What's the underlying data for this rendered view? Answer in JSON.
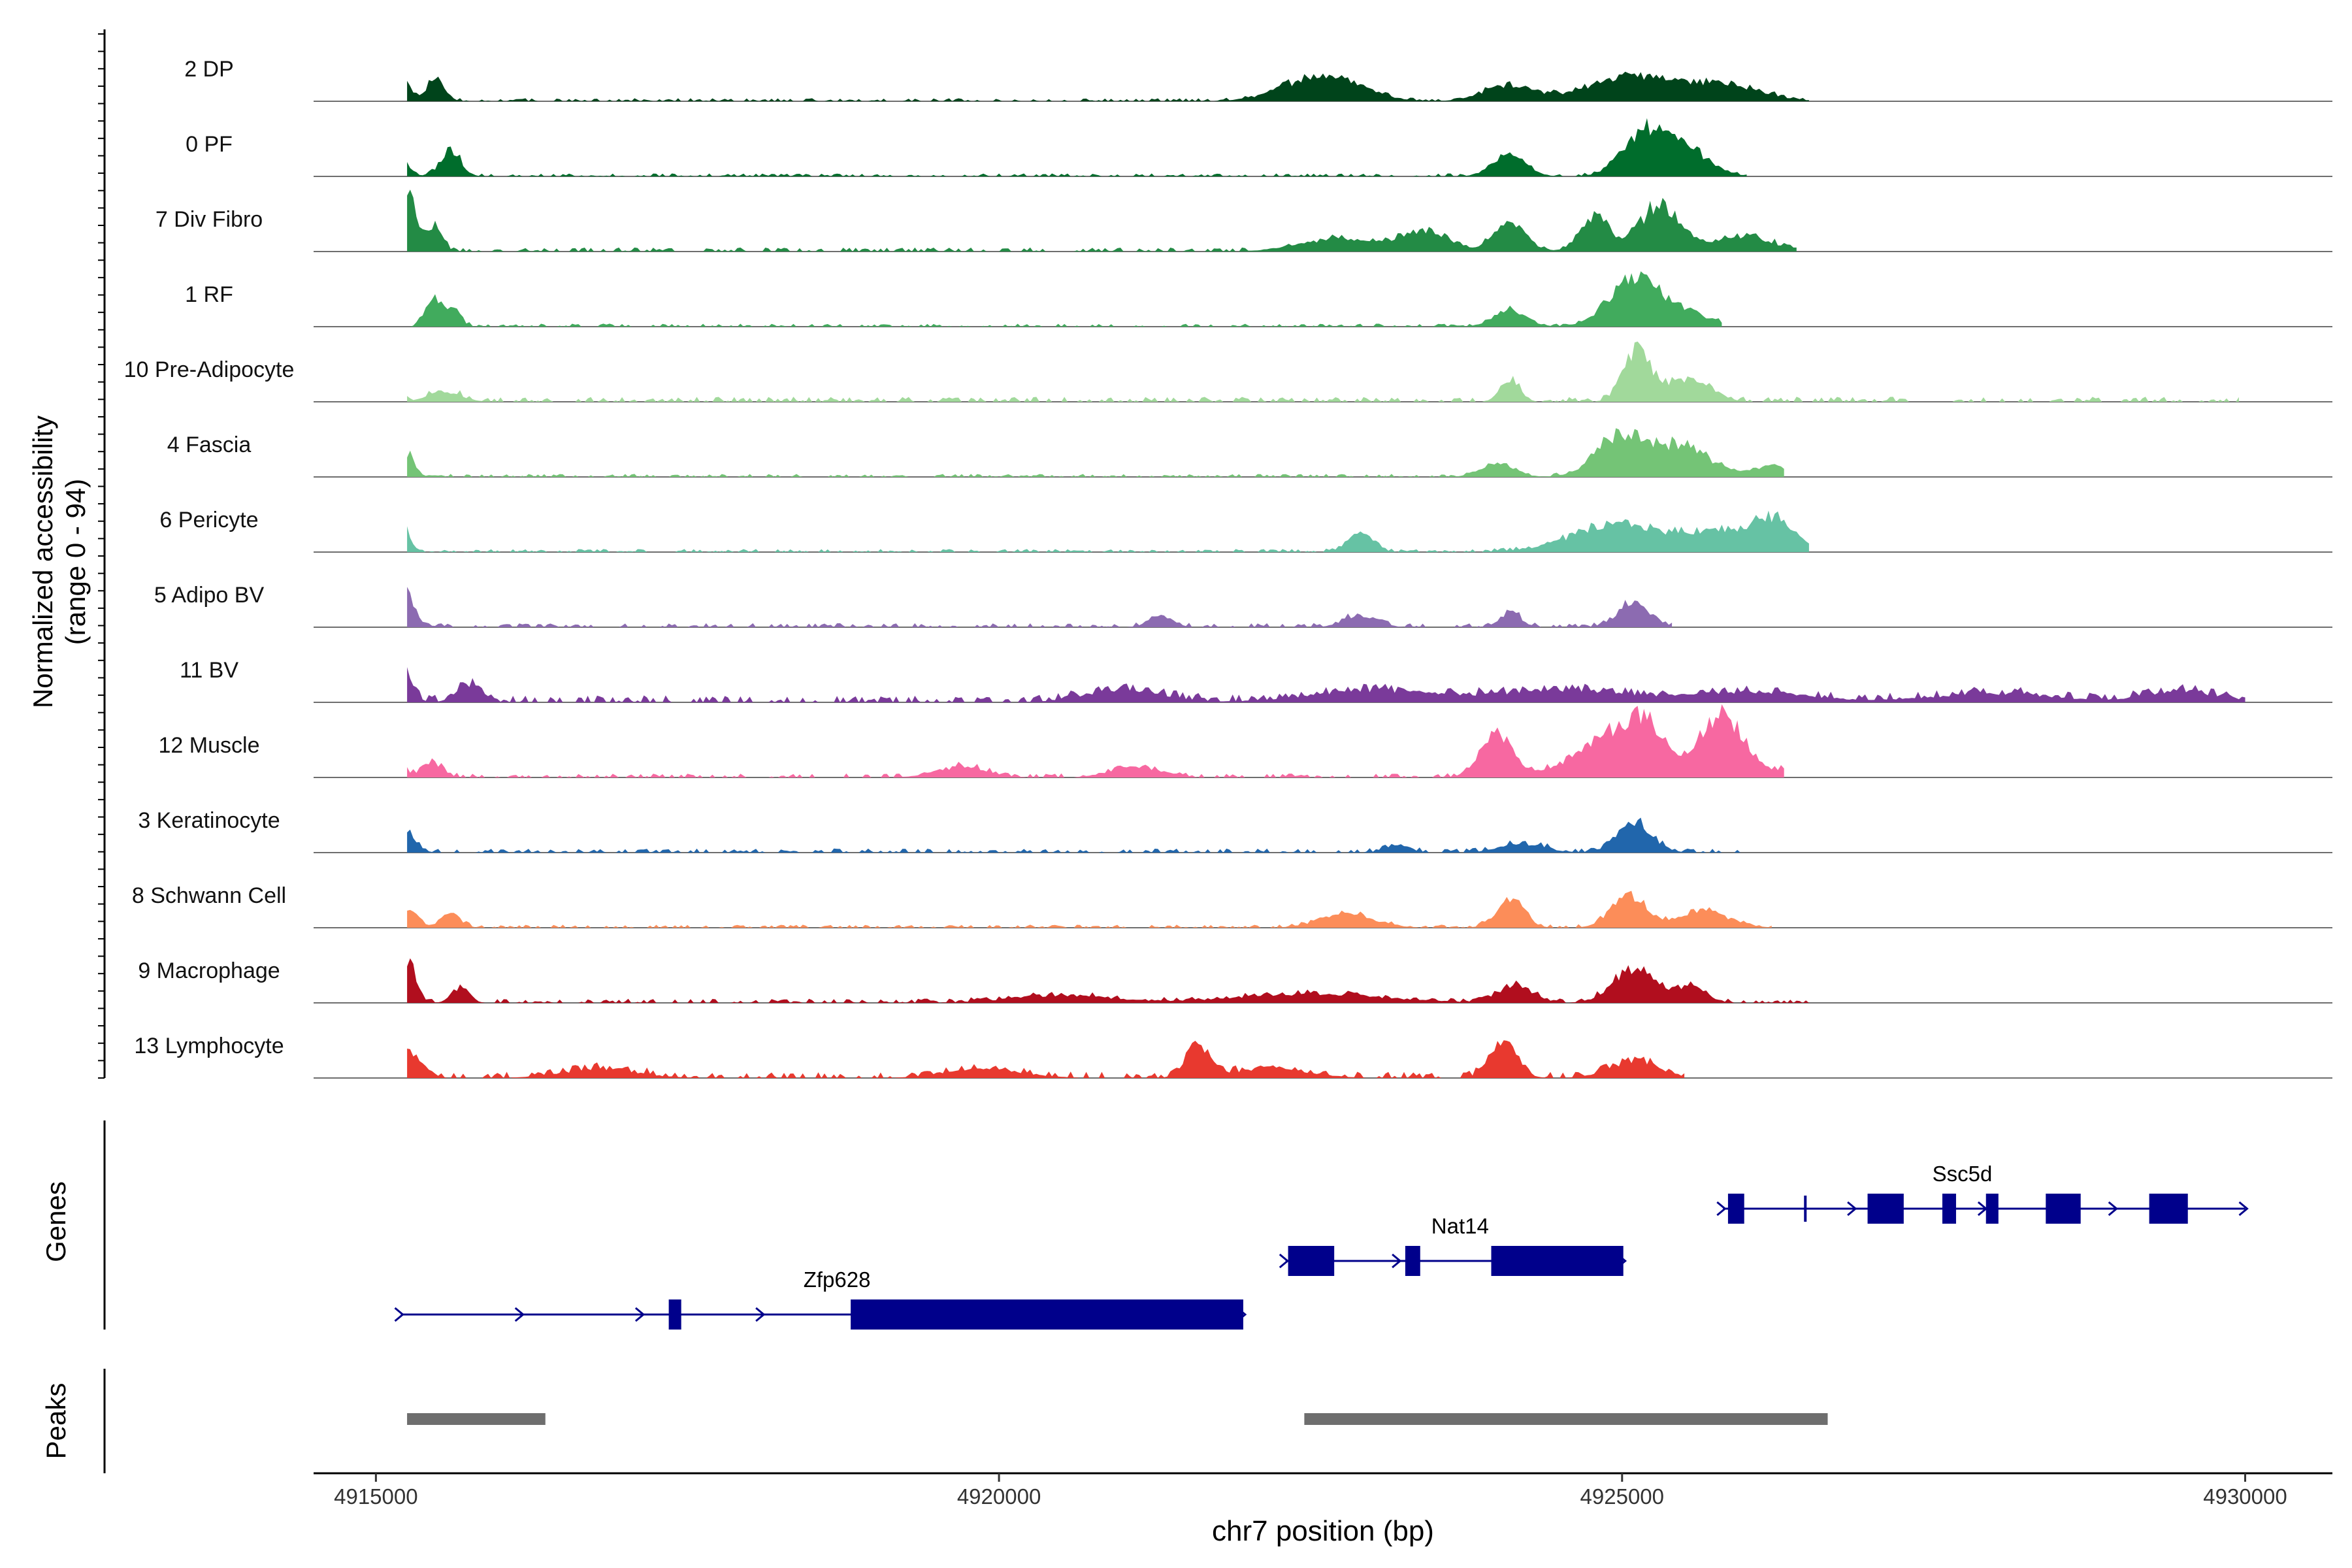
{
  "chart_data": {
    "type": "area",
    "title": "",
    "ylabel_line1": "Normalized accessibility",
    "ylabel_line2": "(range 0 - 94)",
    "xlabel": "chr7 position (bp)",
    "xlim": [
      4914500,
      4930700
    ],
    "y_range": [
      0,
      94
    ],
    "x_ticks": [
      4915000,
      4920000,
      4925000,
      4930000
    ],
    "x_tick_labels": [
      "4915000",
      "4920000",
      "4925000",
      "4930000"
    ],
    "track_y_max": 94,
    "tracks": [
      {
        "name": "2 DP",
        "color": "#00441b",
        "peaks": [
          [
            4915180,
            40,
            70
          ],
          [
            4915480,
            30,
            70
          ],
          [
            4922600,
            35,
            300
          ],
          [
            4924100,
            22,
            200
          ],
          [
            4925070,
            34,
            320
          ],
          [
            4925800,
            22,
            300
          ]
        ],
        "region": [
          4915250,
          4926500
        ],
        "base": 3
      },
      {
        "name": "0 PF",
        "color": "#006d2c",
        "peaks": [
          [
            4915150,
            38,
            80
          ],
          [
            4915600,
            36,
            80
          ],
          [
            4925200,
            62,
            180
          ],
          [
            4924100,
            28,
            130
          ],
          [
            4925550,
            28,
            180
          ]
        ],
        "region": [
          4915250,
          4926000
        ],
        "base": 3
      },
      {
        "name": "7 Div Fibro",
        "color": "#238b45",
        "peaks": [
          [
            4915250,
            78,
            80
          ],
          [
            4915480,
            30,
            60
          ],
          [
            4923400,
            26,
            200
          ],
          [
            4922700,
            16,
            300
          ],
          [
            4924100,
            36,
            130
          ],
          [
            4924780,
            46,
            120
          ],
          [
            4925300,
            60,
            160
          ],
          [
            4925950,
            20,
            250
          ]
        ],
        "region": [
          4915250,
          4926400
        ],
        "base": 4
      },
      {
        "name": "1 RF",
        "color": "#41ab5d",
        "peaks": [
          [
            4915450,
            34,
            60
          ],
          [
            4915600,
            26,
            70
          ],
          [
            4924100,
            22,
            130
          ],
          [
            4925100,
            62,
            200
          ],
          [
            4925500,
            18,
            200
          ]
        ],
        "region": [
          4915250,
          4925800
        ],
        "base": 3
      },
      {
        "name": "10 Pre-Adipocyte",
        "color": "#a1d99b",
        "peaks": [
          [
            4915150,
            48,
            50
          ],
          [
            4915550,
            14,
            130
          ],
          [
            4924100,
            26,
            80
          ],
          [
            4925120,
            70,
            110
          ],
          [
            4925550,
            32,
            160
          ]
        ],
        "region": [
          4915250,
          4929950
        ],
        "base": 5
      },
      {
        "name": "4 Fascia",
        "color": "#74c476",
        "peaks": [
          [
            4915250,
            30,
            60
          ],
          [
            4924000,
            20,
            130
          ],
          [
            4925000,
            58,
            200
          ],
          [
            4925500,
            40,
            200
          ],
          [
            4926200,
            14,
            200
          ]
        ],
        "region": [
          4915250,
          4926300
        ],
        "base": 3
      },
      {
        "name": "6 Pericyte",
        "color": "#66c2a4",
        "peaks": [
          [
            4915200,
            48,
            60
          ],
          [
            4922900,
            26,
            100
          ],
          [
            4925000,
            38,
            380
          ],
          [
            4925750,
            24,
            200
          ],
          [
            4926200,
            46,
            180
          ]
        ],
        "region": [
          4915250,
          4926500
        ],
        "base": 3
      },
      {
        "name": "5 Adipo BV",
        "color": "#8c6bb1",
        "peaks": [
          [
            4915250,
            42,
            70
          ],
          [
            4921300,
            14,
            100
          ],
          [
            4922900,
            16,
            130
          ],
          [
            4924100,
            20,
            80
          ],
          [
            4925100,
            32,
            130
          ]
        ],
        "region": [
          4915250,
          4925400
        ],
        "base": 4
      },
      {
        "name": "11 BV",
        "color": "#7a3a9a",
        "peaks": [
          [
            4915230,
            36,
            70
          ],
          [
            4915750,
            24,
            100
          ],
          [
            4921000,
            18,
            300
          ],
          [
            4923000,
            16,
            500
          ],
          [
            4924500,
            16,
            500
          ],
          [
            4926000,
            14,
            500
          ],
          [
            4928000,
            12,
            500
          ],
          [
            4929500,
            14,
            300
          ]
        ],
        "region": [
          4915250,
          4930000
        ],
        "base": 7
      },
      {
        "name": "12 Muscle",
        "color": "#f768a1",
        "peaks": [
          [
            4915150,
            48,
            60
          ],
          [
            4915450,
            20,
            80
          ],
          [
            4919700,
            14,
            200
          ],
          [
            4921100,
            14,
            200
          ],
          [
            4924000,
            60,
            130
          ],
          [
            4924750,
            34,
            230
          ],
          [
            4925150,
            74,
            200
          ],
          [
            4925800,
            88,
            160
          ],
          [
            4926300,
            10,
            200
          ]
        ],
        "region": [
          4915250,
          4926300
        ],
        "base": 4
      },
      {
        "name": "3 Keratinocyte",
        "color": "#2166ac",
        "peaks": [
          [
            4915200,
            36,
            90
          ],
          [
            4924200,
            12,
            180
          ],
          [
            4925100,
            40,
            140
          ],
          [
            4923200,
            10,
            100
          ]
        ],
        "region": [
          4915250,
          4926000
        ],
        "base": 4
      },
      {
        "name": "8 Schwann Cell",
        "color": "#fc8d59",
        "peaks": [
          [
            4915250,
            26,
            80
          ],
          [
            4915600,
            18,
            80
          ],
          [
            4922800,
            18,
            220
          ],
          [
            4924100,
            38,
            110
          ],
          [
            4925050,
            42,
            140
          ],
          [
            4925650,
            22,
            200
          ]
        ],
        "region": [
          4915250,
          4926200
        ],
        "base": 3
      },
      {
        "name": "9 Macrophage",
        "color": "#b10e1e",
        "peaks": [
          [
            4915250,
            54,
            70
          ],
          [
            4915680,
            20,
            70
          ],
          [
            4924150,
            24,
            130
          ],
          [
            4925100,
            46,
            170
          ],
          [
            4925550,
            22,
            120
          ],
          [
            4922500,
            12,
            600
          ],
          [
            4920500,
            10,
            400
          ]
        ],
        "region": [
          4915250,
          4926500
        ],
        "base": 4
      },
      {
        "name": "13 Lymphocyte",
        "color": "#e8392f",
        "peaks": [
          [
            4915150,
            56,
            60
          ],
          [
            4915300,
            26,
            100
          ],
          [
            4916800,
            12,
            300
          ],
          [
            4919900,
            12,
            300
          ],
          [
            4921600,
            44,
            100
          ],
          [
            4922200,
            12,
            300
          ],
          [
            4924050,
            46,
            110
          ],
          [
            4925100,
            22,
            200
          ]
        ],
        "region": [
          4915250,
          4925500
        ],
        "base": 6
      }
    ],
    "genes_title": "Genes",
    "genes": [
      {
        "name": "Zfp628",
        "start": 4915200,
        "end": 4921960,
        "strand": "+",
        "exons": [
          [
            4917350,
            4917450
          ],
          [
            4918810,
            4921960
          ]
        ],
        "label_pos": 4918700
      },
      {
        "name": "Nat14",
        "start": 4922300,
        "end": 4925010,
        "strand": "+",
        "exons": [
          [
            4922320,
            4922690
          ],
          [
            4923260,
            4923380
          ],
          [
            4923950,
            4925010
          ]
        ],
        "label_pos": 4923700
      },
      {
        "name": "Ssc5d",
        "start": 4925810,
        "end": 4930000,
        "strand": "+",
        "exons": [
          [
            4925850,
            4925980
          ],
          [
            4926460,
            4926470
          ],
          [
            4926970,
            4927260
          ],
          [
            4927570,
            4927680
          ],
          [
            4927920,
            4928020
          ],
          [
            4928400,
            4928680
          ],
          [
            4929230,
            4929540
          ]
        ],
        "label_pos": 4927730
      }
    ],
    "peaks_title": "Peaks",
    "peak_regions": [
      [
        4915250,
        4916360
      ],
      [
        4922450,
        4926650
      ]
    ]
  }
}
